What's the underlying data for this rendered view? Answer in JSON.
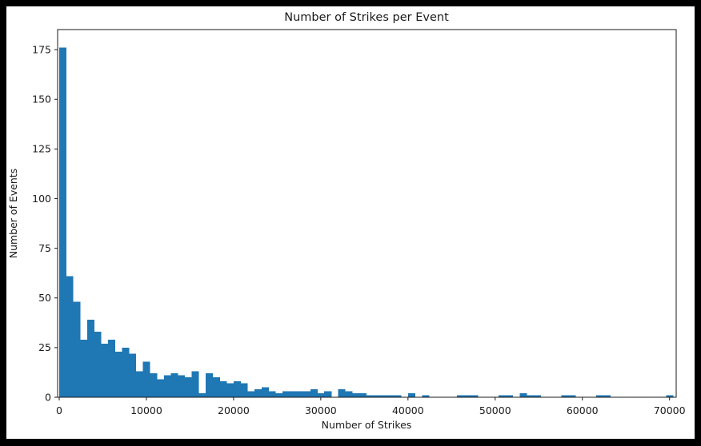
{
  "figure": {
    "frame_color": "#000000",
    "background": "#ffffff"
  },
  "chart_data": {
    "type": "histogram",
    "title": "Number of Strikes per Event",
    "xlabel": "Number of Strikes",
    "ylabel": "Number of Events",
    "bar_color": "#1f77b4",
    "axis_color": "#1a1a1a",
    "grid": false,
    "legend": false,
    "bin_start": 0,
    "bin_width": 800,
    "counts": [
      176,
      61,
      48,
      29,
      39,
      33,
      27,
      29,
      23,
      25,
      22,
      13,
      18,
      12,
      9,
      11,
      12,
      11,
      10,
      13,
      2,
      12,
      10,
      8,
      7,
      8,
      7,
      3,
      4,
      5,
      3,
      2,
      3,
      3,
      3,
      3,
      4,
      2,
      3,
      0,
      4,
      3,
      2,
      2,
      1,
      1,
      1,
      1,
      1,
      0,
      2,
      0,
      1,
      0,
      0,
      0,
      0,
      1,
      1,
      1,
      0,
      0,
      0,
      1,
      1,
      0,
      2,
      1,
      1,
      0,
      0,
      0,
      1,
      1,
      0,
      0,
      0,
      1,
      1,
      0,
      0,
      0,
      0,
      0,
      0,
      0,
      0,
      1
    ],
    "x_ticks": [
      0,
      10000,
      20000,
      30000,
      40000,
      50000,
      60000,
      70000
    ],
    "y_ticks": [
      0,
      25,
      50,
      75,
      100,
      125,
      150,
      175
    ],
    "xlim": [
      0,
      70830
    ],
    "ylim": [
      0,
      184.8
    ]
  }
}
